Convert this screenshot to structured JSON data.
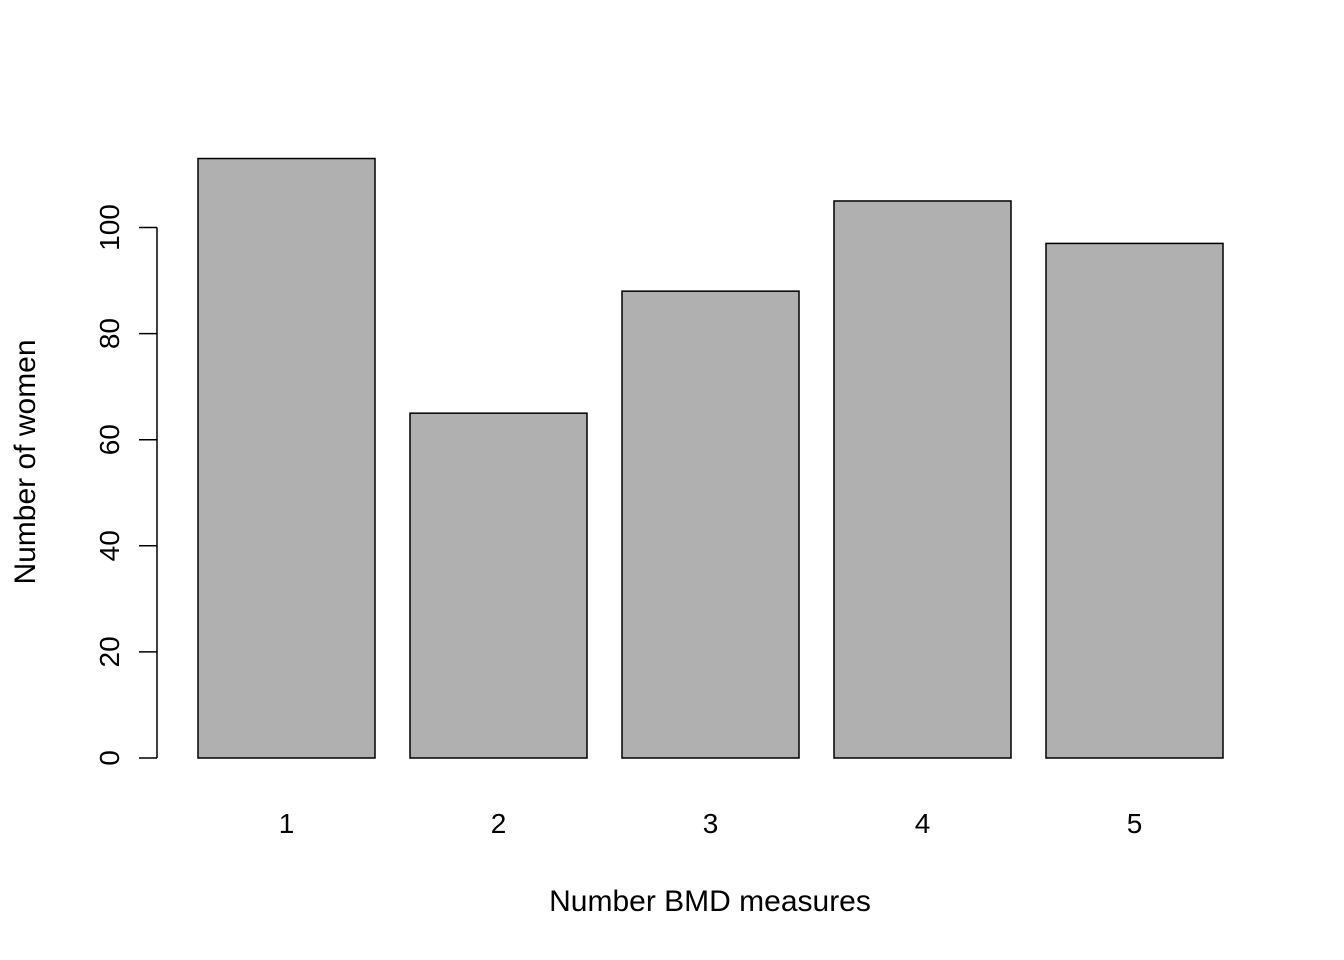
{
  "chart_data": {
    "type": "bar",
    "categories": [
      "1",
      "2",
      "3",
      "4",
      "5"
    ],
    "values": [
      113,
      65,
      88,
      105,
      97
    ],
    "xlabel": "Number BMD measures",
    "ylabel": "Number of women",
    "ylim": [
      0,
      113
    ],
    "yticks": [
      "0",
      "20",
      "40",
      "60",
      "80",
      "100"
    ],
    "grid": false,
    "legend": "none",
    "bar_color": "#b0b0b0",
    "bar_stroke": "#000000"
  }
}
